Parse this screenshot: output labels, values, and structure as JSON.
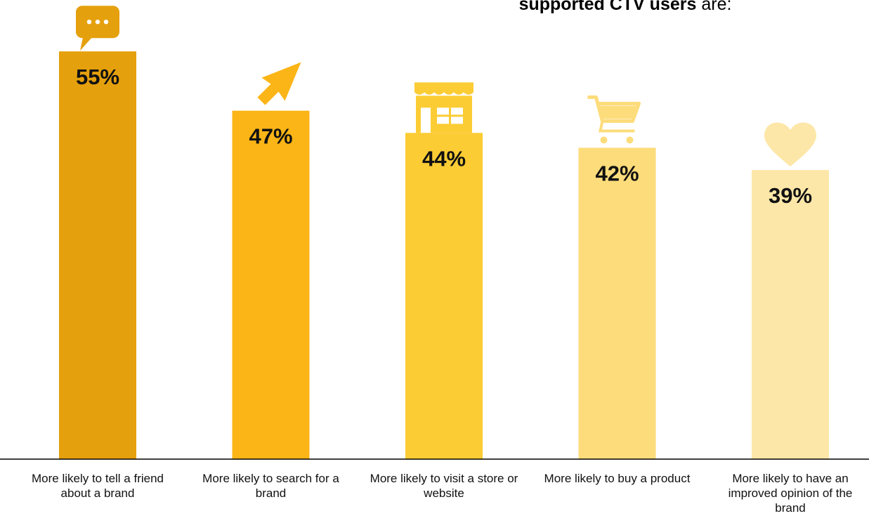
{
  "header": {
    "title_bold": "supported CTV users",
    "title_rest": " are:"
  },
  "chart_data": {
    "type": "bar",
    "categories": [
      "More likely to tell a friend about a brand",
      "More likely to search for a brand",
      "More likely to visit a store or website",
      "More likely to buy a product",
      "More likely to have an improved opinion of the brand"
    ],
    "values": [
      55,
      47,
      44,
      42,
      39
    ],
    "value_labels": [
      "55%",
      "47%",
      "44%",
      "42%",
      "39%"
    ],
    "icons": [
      "speech-bubble-icon",
      "cursor-arrow-icon",
      "storefront-icon",
      "shopping-cart-icon",
      "heart-icon"
    ],
    "colors": [
      "#E5A00D",
      "#FBB517",
      "#FCCC34",
      "#FDDC7B",
      "#FDE7A8"
    ],
    "ylim": [
      0,
      58
    ],
    "grid": false,
    "legend": "none"
  }
}
